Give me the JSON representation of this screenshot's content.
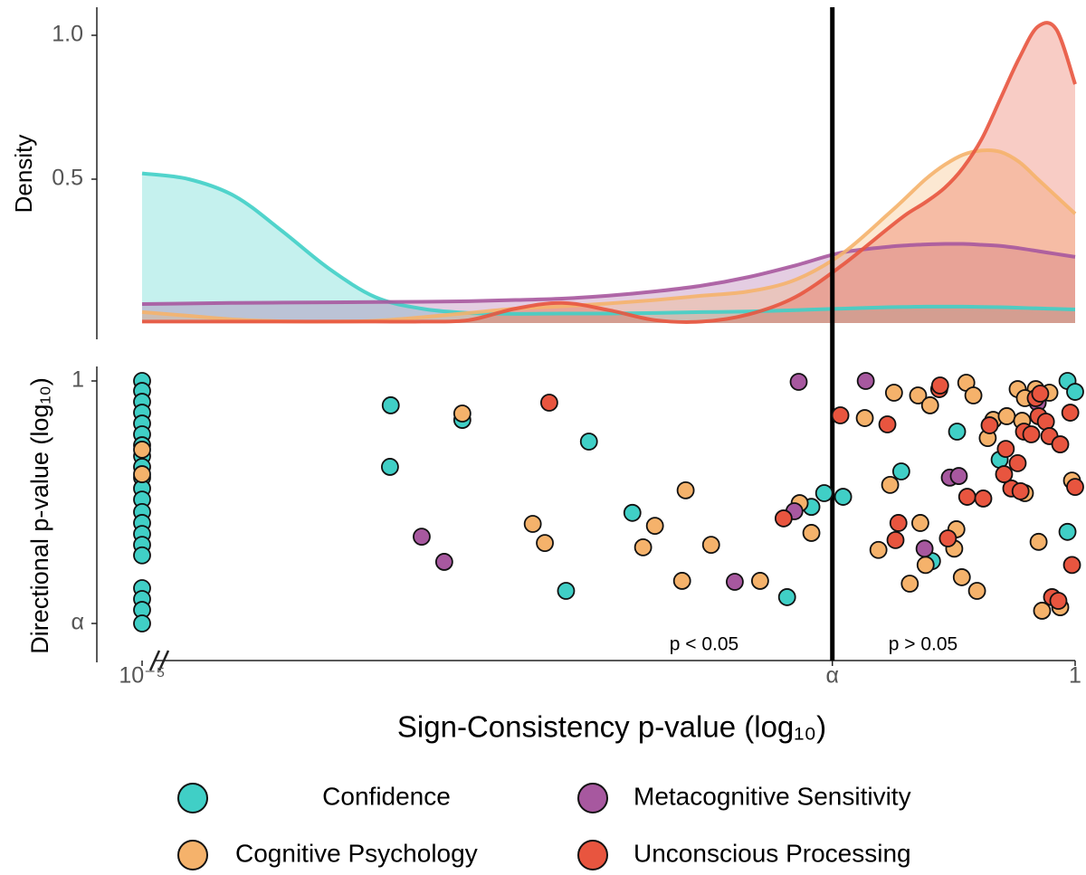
{
  "chart_data": [
    {
      "type": "density",
      "y_label": "Density",
      "log_x": true,
      "xlim": [
        1e-05,
        1
      ],
      "ylim": [
        0,
        1.1
      ],
      "yticks": [
        0.5,
        {
          "value": 1,
          "label": "1.0"
        }
      ],
      "x": [
        1e-05,
        1.78e-05,
        3.16e-05,
        5.62e-05,
        0.0001,
        0.000178,
        0.000316,
        0.000562,
        0.001,
        0.00178,
        0.00316,
        0.00562,
        0.01,
        0.0178,
        0.0316,
        0.0562,
        0.1,
        0.126,
        0.158,
        0.2,
        0.251,
        0.316,
        0.398,
        0.501,
        0.631,
        0.794,
        1
      ],
      "series": [
        {
          "color": "#40cfc6",
          "values": [
            0.52,
            0.5,
            0.44,
            0.32,
            0.19,
            0.09,
            0.05,
            0.035,
            0.032,
            0.033,
            0.033,
            0.035,
            0.038,
            0.04,
            0.045,
            0.05,
            0.055,
            0.056,
            0.057,
            0.057,
            0.057,
            0.056,
            0.055,
            0.053,
            0.051,
            0.049,
            0.047
          ]
        },
        {
          "color": "#f5b26b",
          "values": [
            0.038,
            0.025,
            0.012,
            0.006,
            0.005,
            0.008,
            0.02,
            0.035,
            0.05,
            0.058,
            0.068,
            0.08,
            0.095,
            0.11,
            0.15,
            0.24,
            0.38,
            0.44,
            0.5,
            0.55,
            0.585,
            0.6,
            0.595,
            0.56,
            0.5,
            0.44,
            0.38
          ]
        },
        {
          "color": "#a7589f",
          "values": [
            0.066,
            0.068,
            0.07,
            0.071,
            0.072,
            0.073,
            0.074,
            0.076,
            0.08,
            0.085,
            0.095,
            0.11,
            0.13,
            0.16,
            0.2,
            0.245,
            0.265,
            0.27,
            0.273,
            0.275,
            0.275,
            0.272,
            0.268,
            0.26,
            0.25,
            0.24,
            0.23
          ]
        },
        {
          "color": "#e8553f",
          "values": [
            0.005,
            0.005,
            0.005,
            0.005,
            0.005,
            0.005,
            0.005,
            0.01,
            0.05,
            0.07,
            0.045,
            0.01,
            0.005,
            0.03,
            0.09,
            0.2,
            0.33,
            0.38,
            0.42,
            0.47,
            0.54,
            0.64,
            0.78,
            0.92,
            1.03,
            1.02,
            0.83
          ]
        }
      ]
    },
    {
      "type": "scatter",
      "x_label": "Sign-Consistency  p-value (log₁₀)",
      "y_label": "Directional p-value  (log₁₀)",
      "log_x": true,
      "log_y": true,
      "xlim": [
        1e-05,
        1
      ],
      "ylim": [
        0.03,
        1.2
      ],
      "xticks": [
        {
          "value": 1e-05,
          "label": "10⁻⁵"
        },
        {
          "value": 0.05,
          "label": "α"
        },
        1
      ],
      "yticks": [
        {
          "value": 0.05,
          "label": "α"
        },
        1
      ],
      "reference_line": 0.05,
      "annotations": [
        "p < 0.05",
        "p > 0.05"
      ],
      "series": [
        {
          "name": "Confidence",
          "color": "#40cfc6",
          "x": [
            1e-05,
            1e-05,
            1e-05,
            1e-05,
            1e-05,
            1e-05,
            1e-05,
            1e-05,
            1e-05,
            1e-05,
            1e-05,
            1e-05,
            1e-05,
            1e-05,
            1e-05,
            1e-05,
            1e-05,
            1e-05,
            1e-05,
            1e-05,
            1e-05,
            0.000215,
            0.000213,
            0.00052,
            0.00248,
            0.00424,
            0.00187,
            0.0286,
            0.0386,
            0.0452,
            0.0571,
            0.233,
            0.117,
            0.171,
            0.394,
            0.91,
            1,
            0.91
          ],
          "values": [
            1,
            0.884,
            0.773,
            0.676,
            0.591,
            0.517,
            0.452,
            0.395,
            0.346,
            0.303,
            0.265,
            0.231,
            0.198,
            0.173,
            0.151,
            0.132,
            0.116,
            0.0773,
            0.0676,
            0.0591,
            0.05,
            0.74,
            0.346,
            0.618,
            0.473,
            0.196,
            0.0748,
            0.0692,
            0.211,
            0.25,
            0.239,
            0.535,
            0.327,
            0.108,
            0.378,
            1,
            0.874,
            0.155
          ]
        },
        {
          "name": "Cognitive Psychology",
          "color": "#f5b26b",
          "x": [
            1e-05,
            1e-05,
            0.00052,
            0.00124,
            0.00144,
            0.00484,
            0.0056,
            0.00818,
            0.0112,
            0.00783,
            0.0205,
            0.0334,
            0.0386,
            0.0746,
            0.107,
            0.144,
            0.167,
            0.261,
            0.285,
            0.102,
            0.0883,
            0.148,
            0.158,
            0.231,
            0.225,
            0.13,
            0.247,
            0.298,
            0.34,
            0.364,
            0.43,
            0.492,
            0.52,
            0.538,
            0.637,
            0.665,
            0.832,
            0.962,
            0.728,
            0.615,
            0.538
          ],
          "values": [
            0.428,
            0.316,
            0.669,
            0.171,
            0.135,
            0.128,
            0.167,
            0.259,
            0.132,
            0.0846,
            0.0846,
            0.221,
            0.153,
            0.632,
            0.865,
            0.836,
            0.74,
            0.978,
            0.836,
            0.277,
            0.124,
            0.173,
            0.103,
            0.16,
            0.126,
            0.0818,
            0.0885,
            0.0748,
            0.494,
            0.618,
            0.647,
            0.904,
            0.611,
            0.25,
            0.137,
            0.0585,
            0.0611,
            0.292,
            0.865,
            0.904,
            0.809
          ]
        },
        {
          "name": "Metacognitive Sensitivity",
          "color": "#a7589f",
          "x": [
            0.000315,
            0.000416,
            0.015,
            0.033,
            0.0755,
            0.213,
            0.238,
            0.156,
            0.63,
            0.0313
          ],
          "values": [
            0.146,
            0.107,
            0.0836,
            0.989,
            1,
            0.303,
            0.309,
            0.126,
            0.765,
            0.2
          ]
        },
        {
          "name": "Unconscious Processing",
          "color": "#e8553f",
          "x": [
            0.00152,
            0.0274,
            0.0552,
            0.0986,
            0.187,
            0.189,
            0.348,
            0.113,
            0.109,
            0.208,
            0.264,
            0.322,
            0.455,
            0.492,
            0.416,
            0.425,
            0.532,
            0.51,
            0.615,
            0.637,
            0.697,
            0.728,
            0.832,
            0.942,
            1,
            0.962,
            0.752,
            0.813,
            0.582,
            0.65
          ],
          "values": [
            0.765,
            0.183,
            0.654,
            0.585,
            0.904,
            0.946,
            0.578,
            0.173,
            0.14,
            0.143,
            0.239,
            0.234,
            0.265,
            0.362,
            0.316,
            0.432,
            0.535,
            0.256,
            0.809,
            0.647,
            0.605,
            0.506,
            0.457,
            0.676,
            0.27,
            0.103,
            0.0692,
            0.0661,
            0.517,
            0.855
          ]
        }
      ]
    }
  ]
}
